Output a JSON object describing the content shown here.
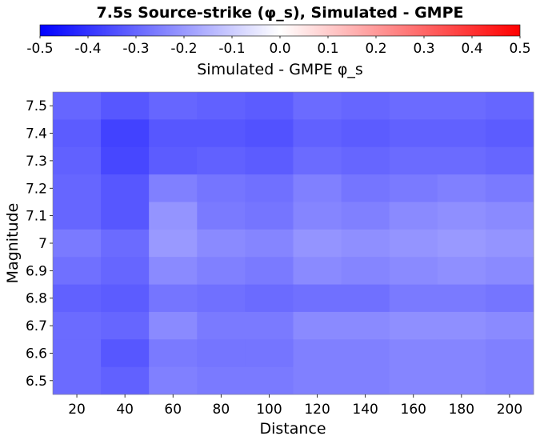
{
  "chart_data": {
    "type": "heatmap",
    "title": "7.5s Source-strike (φ_s), Simulated - GMPE",
    "xlabel": "Distance",
    "ylabel": "Magnitude",
    "x": [
      "20",
      "40",
      "60",
      "80",
      "100",
      "120",
      "140",
      "160",
      "180",
      "200"
    ],
    "y": [
      "7.5",
      "7.4",
      "7.3",
      "7.2",
      "7.1",
      "7",
      "6.9",
      "6.8",
      "6.7",
      "6.6",
      "6.5"
    ],
    "z": [
      [
        -0.3,
        -0.33,
        -0.3,
        -0.31,
        -0.32,
        -0.29,
        -0.3,
        -0.29,
        -0.29,
        -0.3
      ],
      [
        -0.32,
        -0.37,
        -0.33,
        -0.33,
        -0.34,
        -0.31,
        -0.32,
        -0.31,
        -0.31,
        -0.32
      ],
      [
        -0.31,
        -0.36,
        -0.32,
        -0.31,
        -0.32,
        -0.29,
        -0.3,
        -0.29,
        -0.29,
        -0.3
      ],
      [
        -0.3,
        -0.33,
        -0.25,
        -0.27,
        -0.28,
        -0.25,
        -0.27,
        -0.26,
        -0.25,
        -0.26
      ],
      [
        -0.3,
        -0.33,
        -0.21,
        -0.26,
        -0.27,
        -0.24,
        -0.25,
        -0.23,
        -0.22,
        -0.23
      ],
      [
        -0.26,
        -0.29,
        -0.2,
        -0.23,
        -0.24,
        -0.21,
        -0.22,
        -0.21,
        -0.2,
        -0.21
      ],
      [
        -0.28,
        -0.3,
        -0.23,
        -0.25,
        -0.26,
        -0.23,
        -0.24,
        -0.23,
        -0.22,
        -0.23
      ],
      [
        -0.31,
        -0.32,
        -0.27,
        -0.28,
        -0.29,
        -0.28,
        -0.28,
        -0.26,
        -0.26,
        -0.27
      ],
      [
        -0.29,
        -0.3,
        -0.23,
        -0.26,
        -0.26,
        -0.23,
        -0.23,
        -0.22,
        -0.22,
        -0.23
      ],
      [
        -0.29,
        -0.33,
        -0.26,
        -0.27,
        -0.27,
        -0.25,
        -0.25,
        -0.24,
        -0.24,
        -0.25
      ],
      [
        -0.29,
        -0.31,
        -0.25,
        -0.26,
        -0.26,
        -0.25,
        -0.25,
        -0.24,
        -0.24,
        -0.25
      ]
    ],
    "colorbar": {
      "label": "Simulated - GMPE φ_s",
      "range": [
        -0.5,
        0.5
      ],
      "ticks": [
        "-0.5",
        "-0.4",
        "-0.3",
        "-0.2",
        "-0.1",
        "0.0",
        "0.1",
        "0.2",
        "0.3",
        "0.4",
        "0.5"
      ],
      "colors": [
        "#0000ff",
        "#ffffff",
        "#ff0000"
      ]
    },
    "grid": false
  }
}
